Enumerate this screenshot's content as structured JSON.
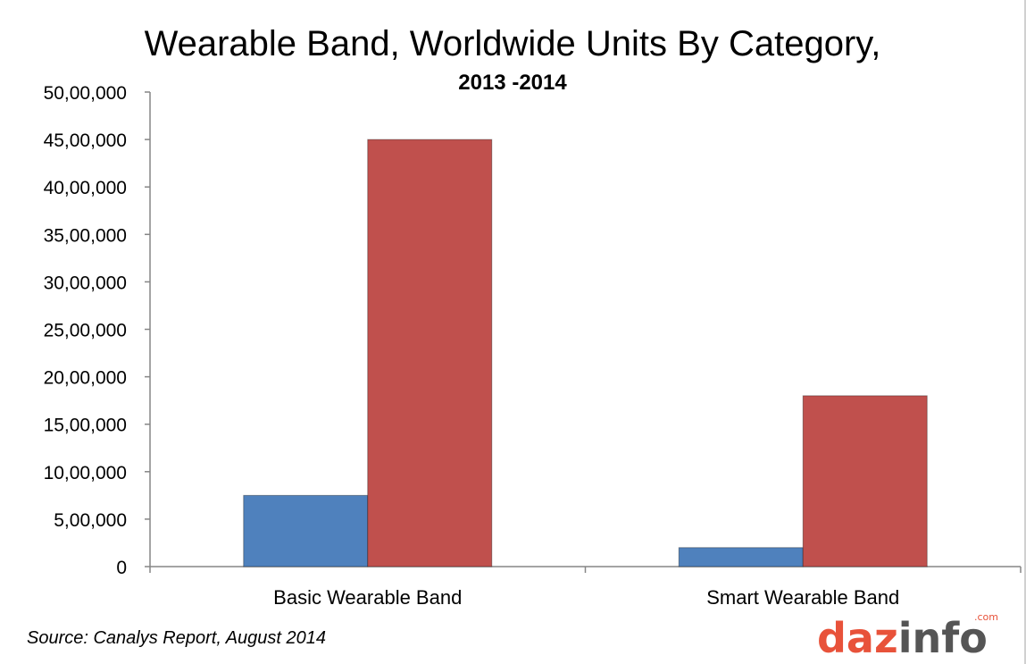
{
  "chart_data": {
    "type": "bar",
    "title": "Wearable Band, Worldwide Units By Category,",
    "subtitle": "2013 -2014",
    "categories": [
      "Basic Wearable Band",
      "Smart Wearable Band"
    ],
    "series": [
      {
        "values": [
          750000,
          200000
        ],
        "color": "#4f81bd"
      },
      {
        "values": [
          4500000,
          1800000
        ],
        "color": "#c0504d"
      }
    ],
    "ylim": [
      0,
      5000000
    ],
    "yticks": [
      0,
      500000,
      1000000,
      1500000,
      2000000,
      2500000,
      3000000,
      3500000,
      4000000,
      4500000,
      5000000
    ],
    "ytick_labels": [
      "0",
      "5,00,000",
      "10,00,000",
      "15,00,000",
      "20,00,000",
      "25,00,000",
      "30,00,000",
      "35,00,000",
      "40,00,000",
      "45,00,000",
      "50,00,000"
    ],
    "grid": false,
    "legend": "none"
  },
  "source": "Source: Canalys Report, August 2014",
  "logo": {
    "part1": "daz",
    "part2": "info",
    "suffix": ".com",
    "color1": "#e8523a",
    "color2": "#555555"
  }
}
